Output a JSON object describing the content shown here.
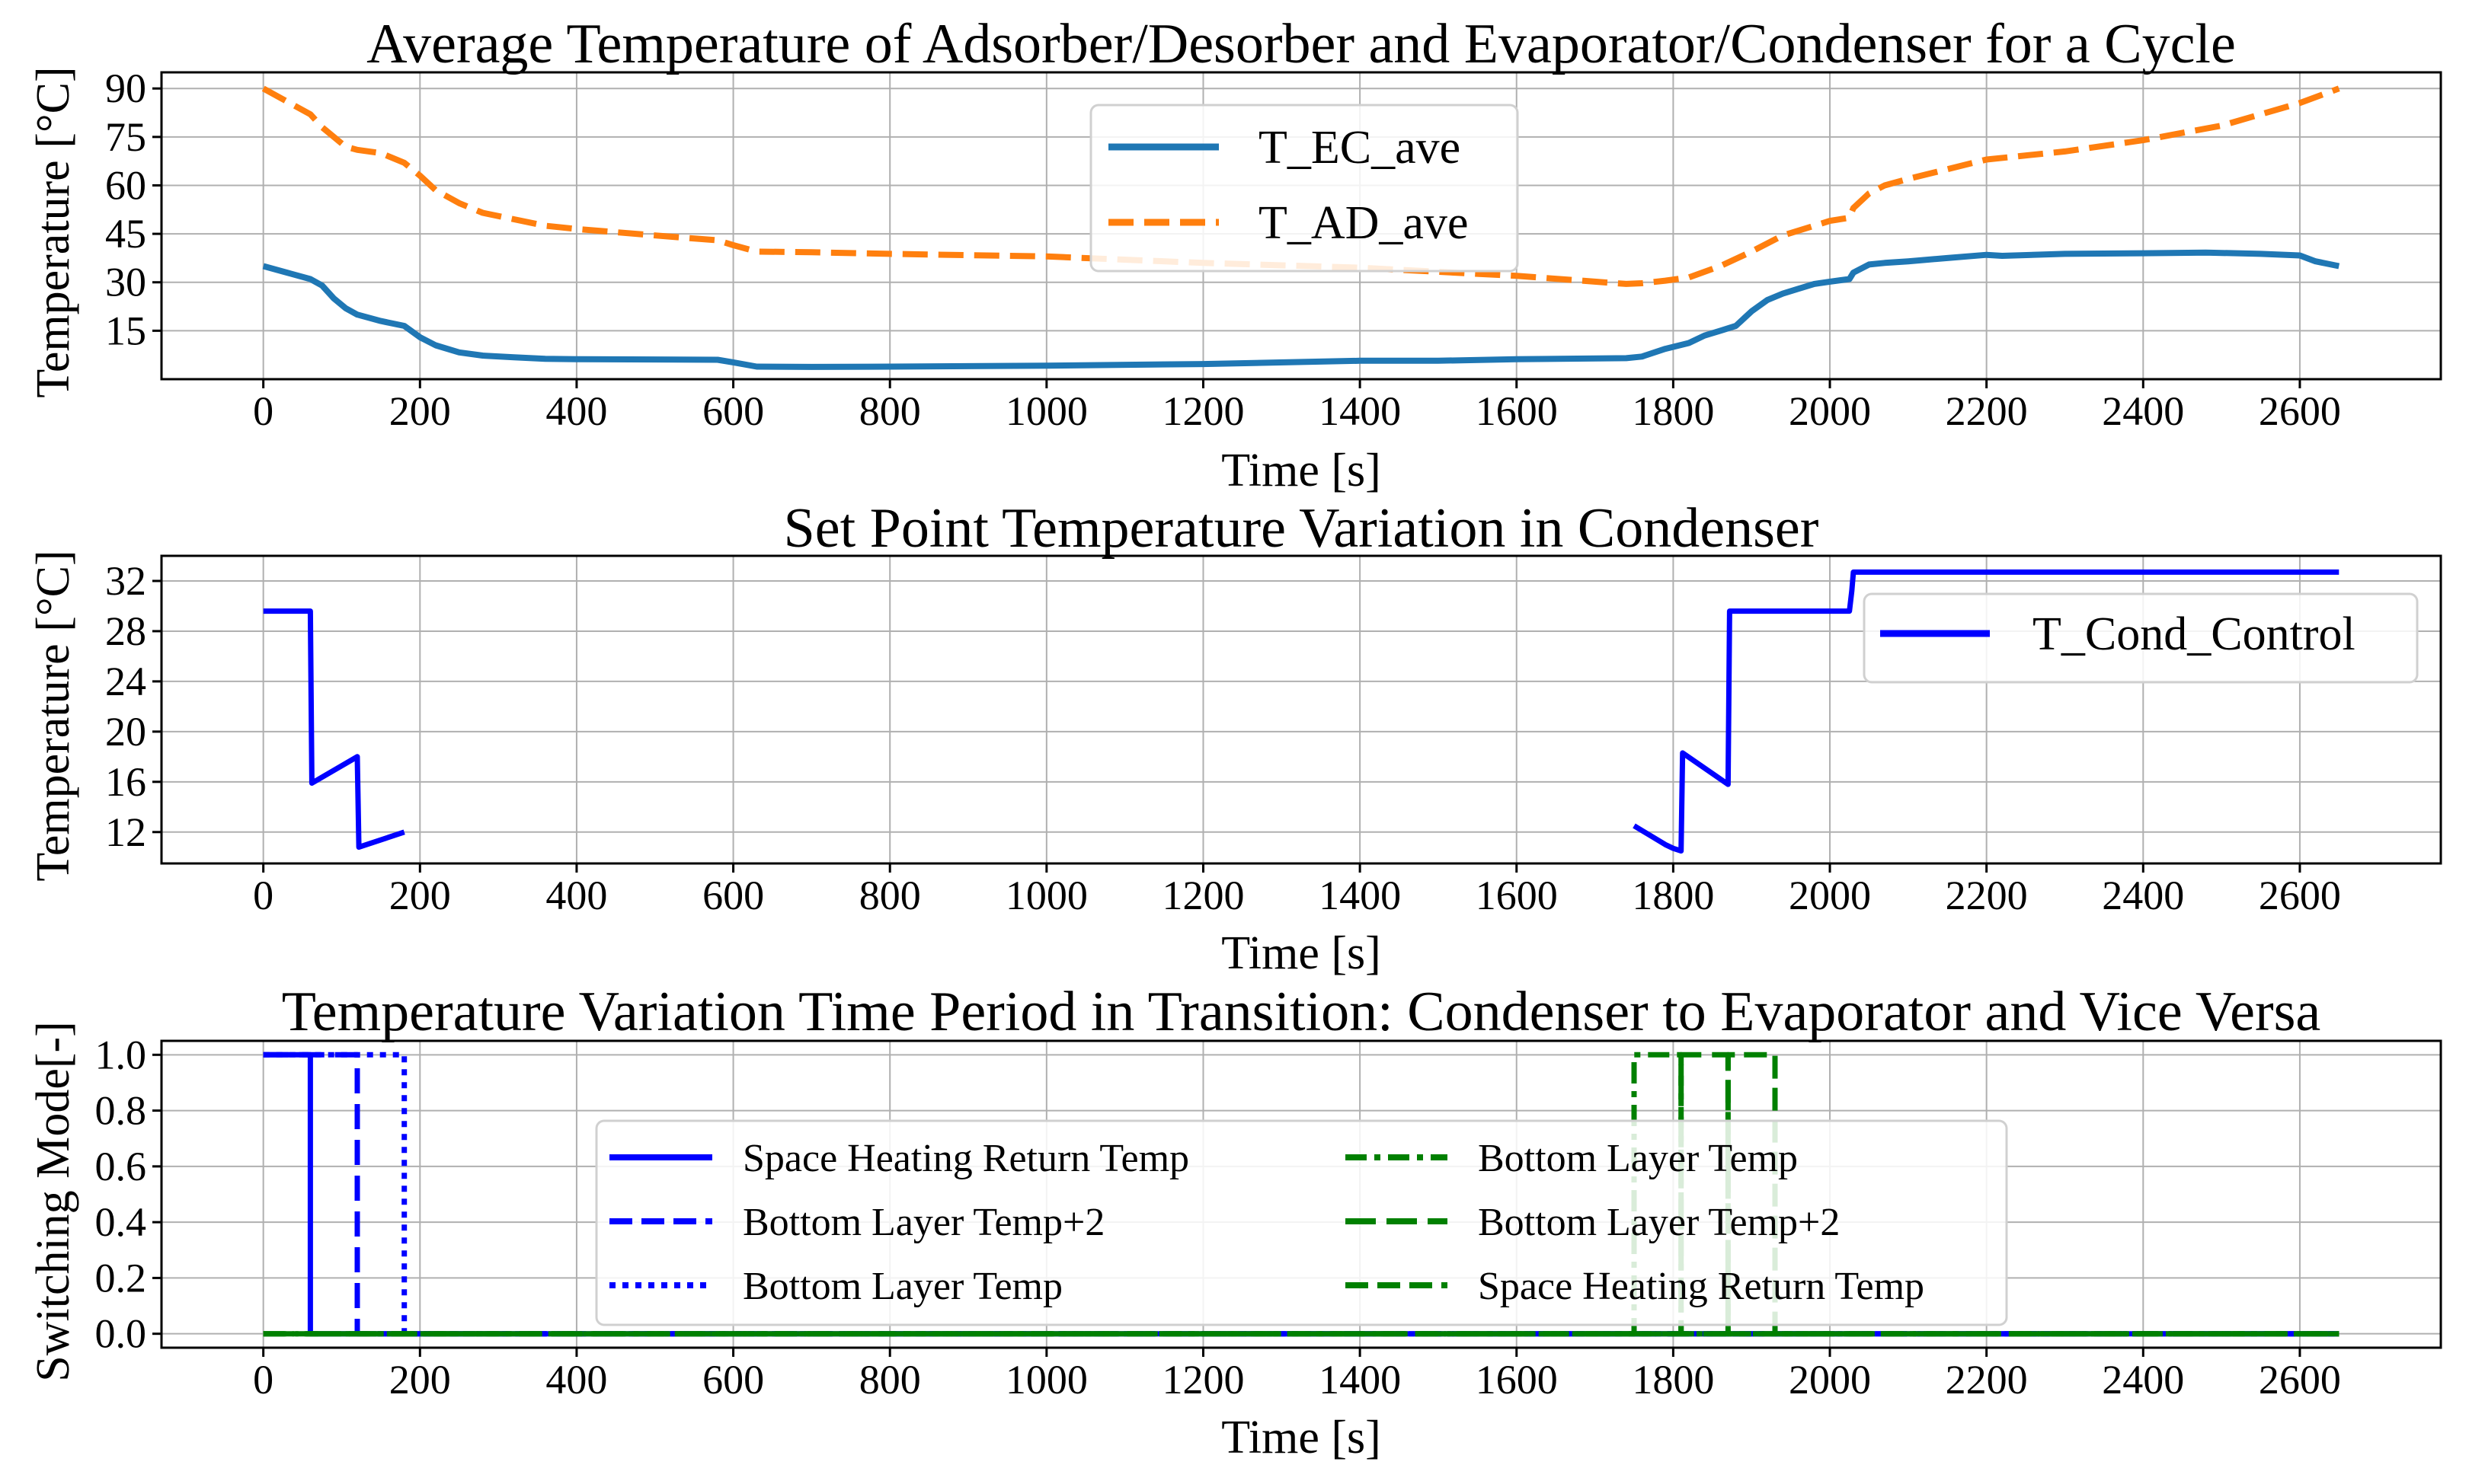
{
  "chart_data": [
    {
      "type": "line",
      "title": "Average Temperature of Adsorber/Desorber and Evaporator/Condenser for a Cycle",
      "xlabel": "Time [s]",
      "ylabel": "Temperature [°C]",
      "xlim": [
        -130,
        2780
      ],
      "ylim": [
        0,
        95
      ],
      "xticks": [
        0,
        200,
        400,
        600,
        800,
        1000,
        1200,
        1400,
        1600,
        1800,
        2000,
        2200,
        2400,
        2600
      ],
      "yticks": [
        15,
        30,
        45,
        60,
        75,
        90
      ],
      "grid": true,
      "legend_position": "upper-center",
      "series": [
        {
          "name": "T_EC_ave",
          "color": "#1f77b4",
          "dash": "solid",
          "x": [
            0,
            30,
            60,
            75,
            90,
            105,
            120,
            150,
            180,
            200,
            220,
            250,
            280,
            320,
            360,
            400,
            500,
            580,
            600,
            630,
            700,
            800,
            1000,
            1200,
            1400,
            1500,
            1600,
            1740,
            1760,
            1790,
            1820,
            1840,
            1860,
            1880,
            1900,
            1920,
            1940,
            1960,
            1980,
            2000,
            2025,
            2030,
            2050,
            2070,
            2100,
            2150,
            2200,
            2220,
            2300,
            2400,
            2480,
            2550,
            2600,
            2620,
            2650
          ],
          "y": [
            35,
            33,
            31,
            29,
            25,
            22,
            20,
            18,
            16.5,
            13,
            10.5,
            8.3,
            7.3,
            6.8,
            6.3,
            6.2,
            6.1,
            6.0,
            5.2,
            3.9,
            3.8,
            3.9,
            4.2,
            4.7,
            5.7,
            5.7,
            6.2,
            6.5,
            7.0,
            9.4,
            11.2,
            13.5,
            15.0,
            16.5,
            21,
            24.5,
            26.5,
            28,
            29.5,
            30.2,
            31,
            33,
            35.5,
            36,
            36.5,
            37.5,
            38.5,
            38.2,
            38.8,
            39.0,
            39.2,
            38.8,
            38.3,
            36.5,
            35
          ]
        },
        {
          "name": "T_AD_ave",
          "color": "#ff7f0e",
          "dash": "dashed",
          "x": [
            0,
            30,
            60,
            75,
            90,
            105,
            120,
            150,
            180,
            200,
            220,
            250,
            280,
            320,
            360,
            400,
            500,
            580,
            600,
            630,
            700,
            800,
            1000,
            1200,
            1400,
            1600,
            1740,
            1760,
            1790,
            1820,
            1860,
            1900,
            1940,
            2000,
            2025,
            2030,
            2050,
            2070,
            2100,
            2200,
            2300,
            2400,
            2500,
            2600,
            2650
          ],
          "y": [
            90,
            86,
            82,
            78,
            75,
            72,
            71,
            70,
            67,
            63,
            58.5,
            54.5,
            51.5,
            49.5,
            47.5,
            46.5,
            44.5,
            43,
            41.5,
            39.5,
            39.3,
            38.8,
            38.0,
            36.0,
            34.5,
            32.0,
            29.5,
            29.7,
            30.5,
            31.5,
            35,
            39.5,
            44.5,
            49,
            50,
            53,
            57.5,
            60,
            62,
            68,
            70.5,
            74,
            78.5,
            85.5,
            90
          ]
        }
      ]
    },
    {
      "type": "line",
      "title": "Set Point Temperature Variation in Condenser",
      "xlabel": "Time [s]",
      "ylabel": "Temperature [°C]",
      "xlim": [
        -130,
        2780
      ],
      "ylim": [
        9.5,
        34
      ],
      "xticks": [
        0,
        200,
        400,
        600,
        800,
        1000,
        1200,
        1400,
        1600,
        1800,
        2000,
        2200,
        2400,
        2600
      ],
      "yticks": [
        12,
        16,
        20,
        24,
        28,
        32
      ],
      "grid": true,
      "legend_position": "upper-right",
      "series": [
        {
          "name": "T_Cond_Control",
          "color": "#0000ff",
          "dash": "solid",
          "segments": [
            {
              "x": [
                0,
                60,
                62,
                120,
                122,
                180
              ],
              "y": [
                29.6,
                29.6,
                15.9,
                18.0,
                10.8,
                12.0
              ]
            },
            {
              "x": [
                1750,
                1790,
                1800,
                1810,
                1812,
                1870,
                1872,
                2025,
                2028,
                2030,
                2650
              ],
              "y": [
                12.5,
                11.0,
                10.7,
                10.5,
                18.3,
                15.8,
                29.6,
                29.6,
                31.2,
                32.7,
                32.7
              ]
            }
          ]
        }
      ]
    },
    {
      "type": "line",
      "title": "Temperature Variation Time Period in Transition: Condenser to Evaporator and Vice Versa",
      "xlabel": "Time [s]",
      "ylabel": "Switching Mode[-]",
      "xlim": [
        -130,
        2780
      ],
      "ylim": [
        -0.05,
        1.05
      ],
      "xticks": [
        0,
        200,
        400,
        600,
        800,
        1000,
        1200,
        1400,
        1600,
        1800,
        2000,
        2200,
        2400,
        2600
      ],
      "yticks": [
        "0.0",
        "0.2",
        "0.4",
        "0.6",
        "0.8",
        "1.0"
      ],
      "grid": true,
      "legend_position": "lower-center",
      "legend_columns": 2,
      "series": [
        {
          "name": "Space Heating Return Temp",
          "color": "#0000ff",
          "dash": "solid",
          "x": [
            0,
            60,
            60,
            2650
          ],
          "y": [
            1,
            1,
            0,
            0
          ]
        },
        {
          "name": "Bottom Layer Temp+2",
          "color": "#0000ff",
          "dash": "dashed",
          "x": [
            0,
            120,
            120,
            2650
          ],
          "y": [
            1,
            1,
            0,
            0
          ]
        },
        {
          "name": "Bottom Layer Temp",
          "color": "#0000ff",
          "dash": "dotted",
          "x": [
            0,
            180,
            180,
            2650
          ],
          "y": [
            1,
            1,
            0,
            0
          ]
        },
        {
          "name": "Bottom Layer Temp",
          "color": "#008000",
          "dash": "dashdot",
          "x": [
            0,
            1750,
            1750,
            1810,
            1810,
            2650
          ],
          "y": [
            0,
            0,
            1,
            1,
            0,
            0
          ]
        },
        {
          "name": "Bottom Layer Temp+2",
          "color": "#008000",
          "dash": "dashed",
          "x": [
            0,
            1810,
            1810,
            1870,
            1870,
            2650
          ],
          "y": [
            0,
            0,
            1,
            1,
            0,
            0
          ]
        },
        {
          "name": "Space Heating Return Temp",
          "color": "#008000",
          "dash": "dashed",
          "x": [
            0,
            1870,
            1870,
            1930,
            1930,
            2650
          ],
          "y": [
            0,
            0,
            1,
            1,
            0,
            0
          ]
        }
      ]
    }
  ]
}
